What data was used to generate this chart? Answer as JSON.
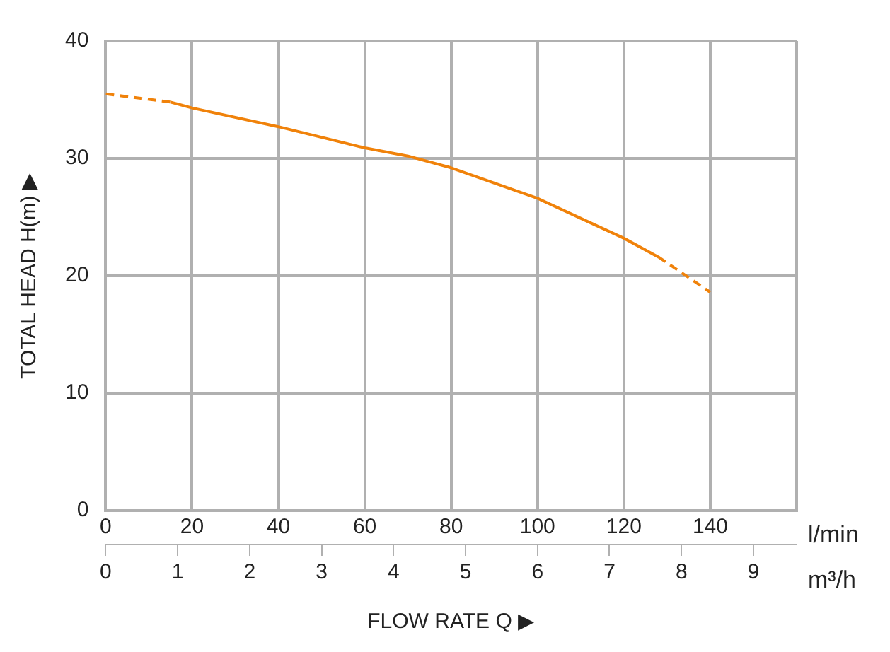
{
  "chart_data": {
    "type": "line",
    "xlabel": "FLOW RATE Q ▶",
    "ylabel": "TOTAL HEAD H(m) ▶",
    "annotations": [
      "l/min",
      "m³/h"
    ],
    "series": [
      {
        "color": "#f0820a",
        "line_style": "dashed",
        "x": [
          0,
          15
        ],
        "values": [
          35.5,
          34.8
        ]
      },
      {
        "color": "#f0820a",
        "line_style": "solid",
        "x": [
          15,
          20,
          40,
          60,
          70,
          80,
          100,
          120,
          128
        ],
        "values": [
          34.8,
          34.3,
          32.7,
          30.9,
          30.2,
          29.2,
          26.6,
          23.2,
          21.6
        ]
      },
      {
        "color": "#f0820a",
        "line_style": "dashed",
        "x": [
          128,
          140
        ],
        "values": [
          21.6,
          18.6
        ]
      }
    ],
    "xlim": [
      0,
      160
    ],
    "xticks": [
      0,
      20,
      40,
      60,
      80,
      100,
      120,
      140,
      {
        "value": 160,
        "label": null
      }
    ],
    "x2lim": [
      0,
      9.6
    ],
    "x2ticks": [
      0,
      1,
      2,
      3,
      4,
      5,
      6,
      7,
      8,
      9
    ],
    "ylim": [
      0,
      40
    ],
    "yticks": [
      0,
      10,
      20,
      30,
      40
    ],
    "grid": true,
    "legend": false,
    "marker": "none"
  }
}
